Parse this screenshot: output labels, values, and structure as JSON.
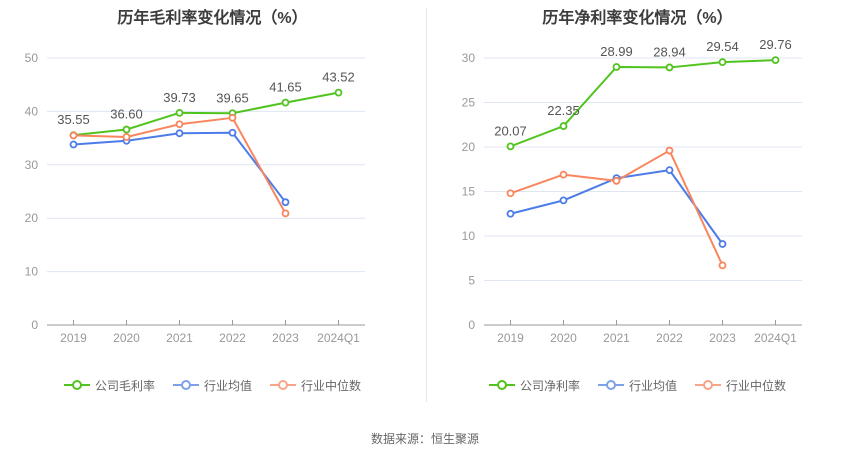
{
  "page": {
    "source_note": "数据来源：恒生聚源"
  },
  "colors": {
    "background": "#ffffff",
    "title": "#3c3c3c",
    "grid": "#dfe6f0",
    "axis_line": "#999999",
    "axis_text": "#999999",
    "point_label": "#555555",
    "legend_text": "#666666",
    "divider": "#eaeaea",
    "series_green": "#50C31E",
    "series_blue": "#4D7CE8",
    "series_orange": "#F8865E"
  },
  "chart_data": [
    {
      "type": "line",
      "title": "历年毛利率变化情况（%）",
      "categories": [
        "2019",
        "2020",
        "2021",
        "2022",
        "2023",
        "2024Q1"
      ],
      "ylim": [
        0,
        50
      ],
      "ytick": 10,
      "grid": true,
      "legend_position": "bottom",
      "series": [
        {
          "name": "公司毛利率",
          "color": "#50C31E",
          "legend_color": "#50C31E",
          "values": [
            35.55,
            36.6,
            39.73,
            39.65,
            41.65,
            43.52
          ],
          "point_labels": [
            "35.55",
            "36.60",
            "39.73",
            "39.65",
            "41.65",
            "43.52"
          ]
        },
        {
          "name": "行业均值",
          "color": "#4D7CE8",
          "legend_color": "#7DA0EB",
          "values": [
            33.8,
            34.5,
            35.9,
            36.0,
            23.0,
            null
          ]
        },
        {
          "name": "行业中位数",
          "color": "#F8865E",
          "legend_color": "#F8A587",
          "values": [
            35.5,
            35.2,
            37.6,
            38.8,
            20.9,
            null
          ]
        }
      ]
    },
    {
      "type": "line",
      "title": "历年净利率变化情况（%）",
      "categories": [
        "2019",
        "2020",
        "2021",
        "2022",
        "2023",
        "2024Q1"
      ],
      "ylim": [
        0,
        30
      ],
      "ytick": 5,
      "grid": true,
      "legend_position": "bottom",
      "series": [
        {
          "name": "公司净利率",
          "color": "#50C31E",
          "legend_color": "#50C31E",
          "values": [
            20.07,
            22.35,
            28.99,
            28.94,
            29.54,
            29.76
          ],
          "point_labels": [
            "20.07",
            "22.35",
            "28.99",
            "28.94",
            "29.54",
            "29.76"
          ]
        },
        {
          "name": "行业均值",
          "color": "#4D7CE8",
          "legend_color": "#7DA0EB",
          "values": [
            12.5,
            14.0,
            16.5,
            17.4,
            9.1,
            null
          ]
        },
        {
          "name": "行业中位数",
          "color": "#F8865E",
          "legend_color": "#F8A587",
          "values": [
            14.8,
            16.9,
            16.2,
            19.6,
            6.7,
            null
          ]
        }
      ]
    }
  ]
}
